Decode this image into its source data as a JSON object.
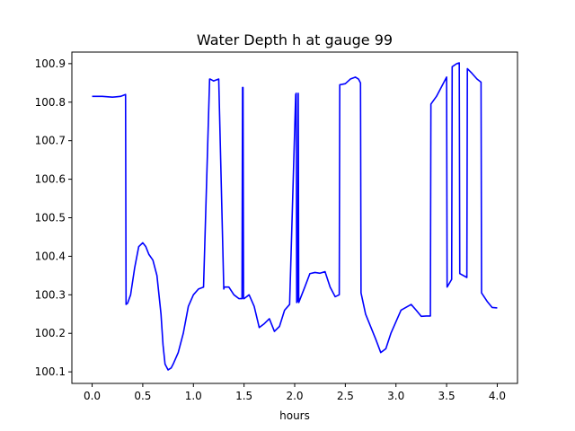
{
  "chart_data": {
    "type": "line",
    "title": "Water Depth h at gauge 99",
    "xlabel": "hours",
    "ylabel": "",
    "xlim": [
      -0.2,
      4.2
    ],
    "ylim": [
      100.07,
      100.93
    ],
    "xticks": [
      0.0,
      0.5,
      1.0,
      1.5,
      2.0,
      2.5,
      3.0,
      3.5,
      4.0
    ],
    "xtick_labels": [
      "0.0",
      "0.5",
      "1.0",
      "1.5",
      "2.0",
      "2.5",
      "3.0",
      "3.5",
      "4.0"
    ],
    "yticks": [
      100.1,
      100.2,
      100.3,
      100.4,
      100.5,
      100.6,
      100.7,
      100.8,
      100.9
    ],
    "ytick_labels": [
      "100.1",
      "100.2",
      "100.3",
      "100.4",
      "100.5",
      "100.6",
      "100.7",
      "100.8",
      "100.9"
    ],
    "grid": false,
    "color": "#0000ff",
    "series": [
      {
        "x": [
          0.0,
          0.1,
          0.2,
          0.28,
          0.33,
          0.335,
          0.35,
          0.38,
          0.42,
          0.46,
          0.5,
          0.53,
          0.56,
          0.6,
          0.64,
          0.68,
          0.7,
          0.72,
          0.75,
          0.78,
          0.8,
          0.85,
          0.9,
          0.95,
          1.0,
          1.05,
          1.1,
          1.16,
          1.165,
          1.2,
          1.25,
          1.3,
          1.305,
          1.35,
          1.4,
          1.45,
          1.48,
          1.485,
          1.49,
          1.495,
          1.5,
          1.55,
          1.6,
          1.65,
          1.7,
          1.75,
          1.8,
          1.85,
          1.9,
          1.95,
          2.01,
          2.015,
          2.02,
          2.03,
          2.035,
          2.04,
          2.1,
          2.15,
          2.2,
          2.25,
          2.3,
          2.35,
          2.4,
          2.44,
          2.445,
          2.5,
          2.55,
          2.6,
          2.63,
          2.65,
          2.655,
          2.7,
          2.8,
          2.85,
          2.9,
          2.95,
          3.05,
          3.15,
          3.2,
          3.25,
          3.3,
          3.34,
          3.345,
          3.4,
          3.45,
          3.5,
          3.505,
          3.55,
          3.555,
          3.6,
          3.625,
          3.63,
          3.7,
          3.705,
          3.75,
          3.8,
          3.84,
          3.845,
          3.9,
          3.95,
          4.0
        ],
        "y": [
          100.815,
          100.815,
          100.813,
          100.815,
          100.82,
          100.275,
          100.278,
          100.3,
          100.37,
          100.425,
          100.435,
          100.425,
          100.405,
          100.39,
          100.35,
          100.25,
          100.17,
          100.12,
          100.105,
          100.11,
          100.12,
          100.15,
          100.2,
          100.27,
          100.3,
          100.315,
          100.32,
          100.86,
          100.86,
          100.855,
          100.86,
          100.315,
          100.32,
          100.32,
          100.3,
          100.29,
          100.29,
          100.838,
          100.838,
          100.29,
          100.29,
          100.3,
          100.27,
          100.215,
          100.225,
          100.238,
          100.205,
          100.218,
          100.26,
          100.275,
          100.82,
          100.823,
          100.28,
          100.285,
          100.823,
          100.28,
          100.32,
          100.355,
          100.358,
          100.356,
          100.36,
          100.32,
          100.295,
          100.3,
          100.845,
          100.848,
          100.86,
          100.865,
          100.86,
          100.85,
          100.305,
          100.25,
          100.185,
          100.15,
          100.16,
          100.2,
          100.26,
          100.275,
          100.26,
          100.244,
          100.245,
          100.245,
          100.795,
          100.815,
          100.84,
          100.865,
          100.32,
          100.34,
          100.892,
          100.9,
          100.902,
          100.355,
          100.345,
          100.887,
          100.875,
          100.86,
          100.852,
          100.305,
          100.283,
          100.267,
          100.266
        ]
      }
    ]
  }
}
